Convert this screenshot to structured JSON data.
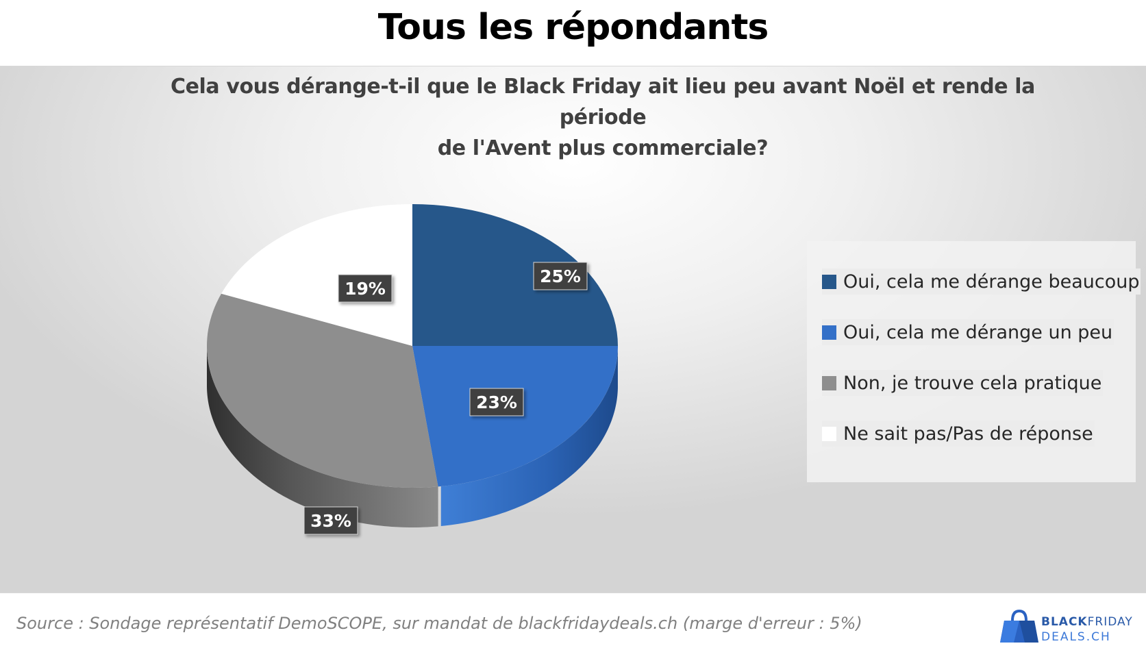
{
  "header": {
    "title": "Tous les répondants"
  },
  "chart_data": {
    "type": "pie",
    "title": "Cela vous dérange-t-il que le Black Friday ait lieu peu avant Noël et rende la période de l'Avent plus commerciale?",
    "title_lines": [
      "Cela vous dérange-t-il que le Black Friday ait lieu peu avant Noël et rende la période",
      "de l'Avent plus commerciale?"
    ],
    "legend_placement": "right",
    "slices": [
      {
        "label": "Oui, cela me dérange beaucoup",
        "value": 25,
        "display": "25%",
        "color": "#26578a",
        "side_color": "#1b3f66"
      },
      {
        "label": "Oui, cela me dérange un peu",
        "value": 23,
        "display": "23%",
        "color": "#3370c8",
        "side_color": "#2757a1"
      },
      {
        "label": "Non, je trouve cela pratique",
        "value": 33,
        "display": "33%",
        "color": "#8e8e8e",
        "side_color": "#5e5e5e"
      },
      {
        "label": "Ne sait pas/Pas de réponse",
        "value": 19,
        "display": "19%",
        "color": "#ffffff",
        "side_color": "#d9d9d9"
      }
    ]
  },
  "footer": {
    "source": "Source : Sondage représentatif DemoSCOPE, sur mandat de blackfridaydeals.ch (marge d'erreur : 5%)"
  },
  "logo": {
    "line1_part1": "BLACK",
    "line1_part2": "FRIDAY",
    "line2": "DEALS.CH"
  }
}
